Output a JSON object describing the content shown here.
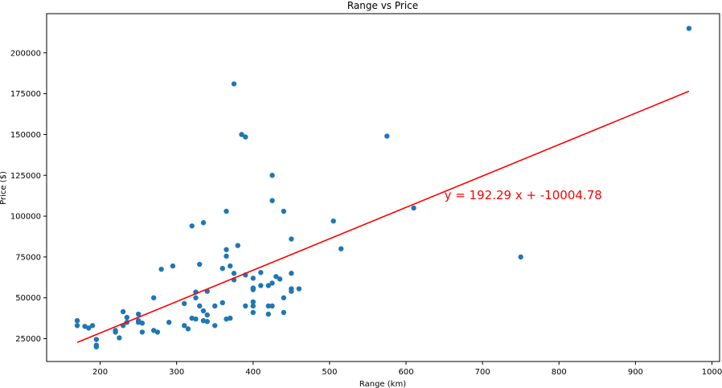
{
  "chart_data": {
    "type": "scatter",
    "title": "Range vs Price",
    "xlabel": "Range (km)",
    "ylabel": "Price ($)",
    "xlim": [
      130,
      1010
    ],
    "ylim": [
      11000,
      224000
    ],
    "x_ticks": [
      200,
      300,
      400,
      500,
      600,
      700,
      800,
      900,
      1000
    ],
    "y_ticks": [
      25000,
      50000,
      75000,
      100000,
      125000,
      150000,
      175000,
      200000
    ],
    "grid": false,
    "marker_color": "#1f77b4",
    "line_color": "#ff0000",
    "regression": {
      "slope": 192.29,
      "intercept": -10004.78,
      "x_range": [
        170,
        970
      ],
      "equation_text": "y = 192.29 x + -10004.78",
      "equation_x": 650,
      "equation_y": 110000
    },
    "points": [
      [
        170,
        36000
      ],
      [
        170,
        33000
      ],
      [
        180,
        32500
      ],
      [
        185,
        31500
      ],
      [
        190,
        33000
      ],
      [
        195,
        24500
      ],
      [
        195,
        21000
      ],
      [
        195,
        20000
      ],
      [
        220,
        30000
      ],
      [
        220,
        29000
      ],
      [
        225,
        25500
      ],
      [
        230,
        41500
      ],
      [
        230,
        33000
      ],
      [
        235,
        38000
      ],
      [
        235,
        35000
      ],
      [
        250,
        40000
      ],
      [
        250,
        36000
      ],
      [
        250,
        35000
      ],
      [
        255,
        34500
      ],
      [
        255,
        29000
      ],
      [
        270,
        50000
      ],
      [
        270,
        30000
      ],
      [
        275,
        29000
      ],
      [
        280,
        67500
      ],
      [
        290,
        35000
      ],
      [
        295,
        69500
      ],
      [
        310,
        46500
      ],
      [
        310,
        33000
      ],
      [
        315,
        31000
      ],
      [
        320,
        94000
      ],
      [
        320,
        37500
      ],
      [
        325,
        53500
      ],
      [
        325,
        50000
      ],
      [
        325,
        37000
      ],
      [
        330,
        70500
      ],
      [
        330,
        45000
      ],
      [
        335,
        96000
      ],
      [
        335,
        42000
      ],
      [
        335,
        36000
      ],
      [
        340,
        54000
      ],
      [
        340,
        39500
      ],
      [
        340,
        35500
      ],
      [
        350,
        45000
      ],
      [
        350,
        33000
      ],
      [
        360,
        68000
      ],
      [
        360,
        47000
      ],
      [
        365,
        103000
      ],
      [
        365,
        79500
      ],
      [
        365,
        75500
      ],
      [
        365,
        37000
      ],
      [
        370,
        69500
      ],
      [
        370,
        37500
      ],
      [
        375,
        181000
      ],
      [
        375,
        65000
      ],
      [
        375,
        61000
      ],
      [
        380,
        82000
      ],
      [
        385,
        150000
      ],
      [
        390,
        148500
      ],
      [
        390,
        64000
      ],
      [
        390,
        45000
      ],
      [
        400,
        62000
      ],
      [
        400,
        56000
      ],
      [
        400,
        55000
      ],
      [
        400,
        47500
      ],
      [
        400,
        45000
      ],
      [
        400,
        41000
      ],
      [
        410,
        65500
      ],
      [
        410,
        57500
      ],
      [
        420,
        57500
      ],
      [
        420,
        45000
      ],
      [
        420,
        40000
      ],
      [
        425,
        125000
      ],
      [
        425,
        109500
      ],
      [
        425,
        59000
      ],
      [
        425,
        45000
      ],
      [
        430,
        63000
      ],
      [
        435,
        61500
      ],
      [
        440,
        103000
      ],
      [
        440,
        50000
      ],
      [
        440,
        41000
      ],
      [
        450,
        86000
      ],
      [
        450,
        65000
      ],
      [
        450,
        55500
      ],
      [
        450,
        54000
      ],
      [
        460,
        55500
      ],
      [
        505,
        97000
      ],
      [
        515,
        80000
      ],
      [
        575,
        149000
      ],
      [
        610,
        105000
      ],
      [
        750,
        75000
      ],
      [
        970,
        215000
      ]
    ]
  }
}
